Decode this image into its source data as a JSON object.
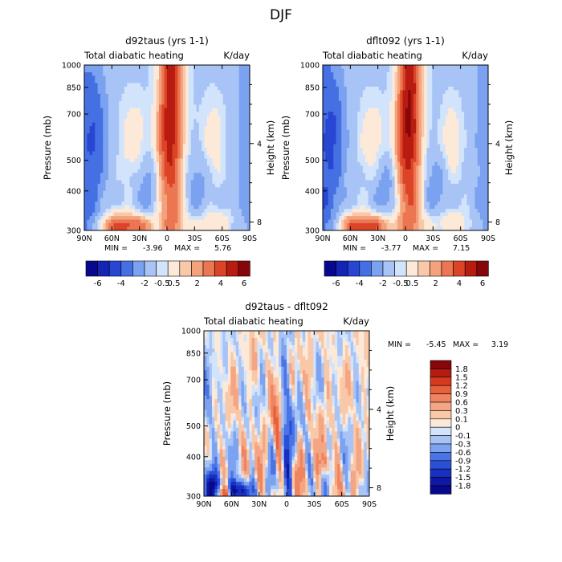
{
  "figure_title": "DJF",
  "chart_data": [
    {
      "type": "heatmap",
      "title": "d92taus (yrs 1-1)",
      "subtitle_left": "Total diabatic heating",
      "subtitle_right": "K/day",
      "xlabel": "",
      "ylabel": "Pressure (mb)",
      "ylabel_right": "Height (km)",
      "x_ticks": [
        "90N",
        "60N",
        "30N",
        "0",
        "30S",
        "60S",
        "90S"
      ],
      "x_values": [
        90,
        60,
        30,
        0,
        -30,
        -60,
        -90
      ],
      "y_ticks": [
        1000,
        850,
        700,
        500,
        400,
        300
      ],
      "y_right_ticks": [
        4,
        8
      ],
      "ylim": [
        1000,
        300
      ],
      "min_label": "MIN =",
      "min": "-3.96",
      "max_label": "MAX =",
      "max": "5.76",
      "colorbar": "horizontal",
      "colorbar_labels": [
        "-6",
        "-4",
        "-2",
        "-0.5",
        "0.5",
        "2",
        "4",
        "6"
      ]
    },
    {
      "type": "heatmap",
      "title": "dflt092 (yrs 1-1)",
      "subtitle_left": "Total diabatic heating",
      "subtitle_right": "K/day",
      "xlabel": "",
      "ylabel": "Pressure (mb)",
      "ylabel_right": "Height (km)",
      "x_ticks": [
        "90N",
        "60N",
        "30N",
        "0",
        "30S",
        "60S",
        "90S"
      ],
      "x_values": [
        90,
        60,
        30,
        0,
        -30,
        -60,
        -90
      ],
      "y_ticks": [
        1000,
        850,
        700,
        500,
        400,
        300
      ],
      "y_right_ticks": [
        4,
        8
      ],
      "ylim": [
        1000,
        300
      ],
      "min_label": "MIN =",
      "min": "-3.77",
      "max_label": "MAX =",
      "max": "7.15",
      "colorbar": "horizontal",
      "colorbar_labels": [
        "-6",
        "-4",
        "-2",
        "-0.5",
        "0.5",
        "2",
        "4",
        "6"
      ]
    },
    {
      "type": "heatmap",
      "title": "d92taus - dflt092",
      "subtitle_left": "Total diabatic heating",
      "subtitle_right": "K/day",
      "xlabel": "",
      "ylabel": "Pressure (mb)",
      "ylabel_right": "Height (km)",
      "x_ticks": [
        "90N",
        "60N",
        "30N",
        "0",
        "30S",
        "60S",
        "90S"
      ],
      "x_values": [
        90,
        60,
        30,
        0,
        -30,
        -60,
        -90
      ],
      "y_ticks": [
        1000,
        850,
        700,
        500,
        400,
        300
      ],
      "y_right_ticks": [
        4,
        8
      ],
      "ylim": [
        1000,
        300
      ],
      "min_label": "MIN =",
      "min": "-5.45",
      "max_label": "MAX =",
      "max": "3.19",
      "colorbar": "vertical",
      "colorbar_labels": [
        "1.8",
        "1.5",
        "1.2",
        "0.9",
        "0.6",
        "0.3",
        "0.1",
        "0",
        "-0.1",
        "-0.3",
        "-0.6",
        "-0.9",
        "-1.2",
        "-1.5",
        "-1.8"
      ]
    }
  ],
  "colors": {
    "palette_14": [
      "#08088c",
      "#1424b4",
      "#2846d2",
      "#4470e4",
      "#7aa2f0",
      "#a8c4f6",
      "#d2e4fc",
      "#fde9d8",
      "#f8c8a8",
      "#f3a27c",
      "#ec7652",
      "#dc4428",
      "#b81c10",
      "#86060a"
    ],
    "palette_16": [
      "#08088c",
      "#0e18a4",
      "#1830c0",
      "#2a50d8",
      "#4a74e6",
      "#7ca2f0",
      "#a8c4f6",
      "#d2e4fc",
      "#fde9d8",
      "#f8c8a8",
      "#f4a684",
      "#ef8460",
      "#e8603c",
      "#d63a1e",
      "#b41c10",
      "#86060a"
    ]
  }
}
